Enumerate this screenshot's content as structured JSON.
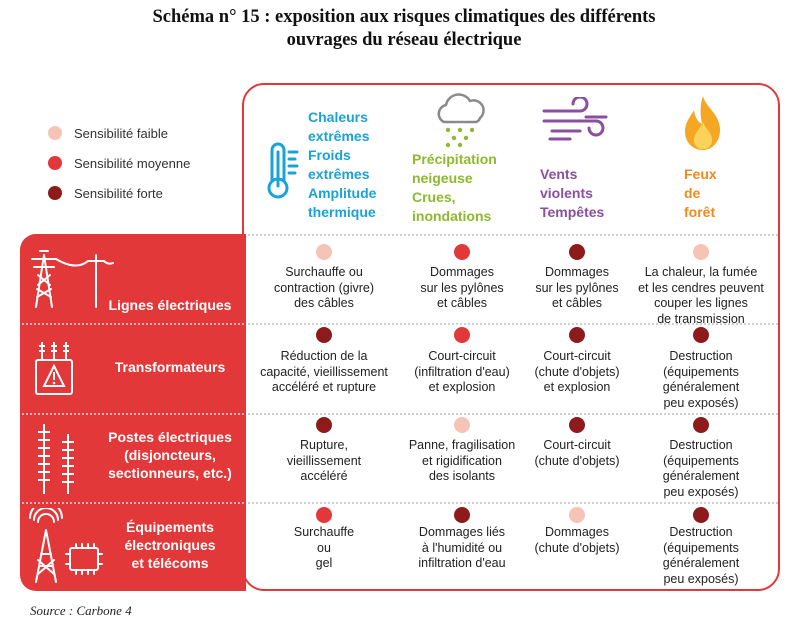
{
  "title": {
    "line1": "Schéma n° 15 : exposition aux risques climatiques des différents",
    "line2": "ouvrages du réseau électrique"
  },
  "legend": [
    {
      "label": "Sensibilité faible",
      "color": "#f6c4b6"
    },
    {
      "label": "Sensibilité moyenne",
      "color": "#e2383a"
    },
    {
      "label": "Sensibilité forte",
      "color": "#8e1b1b"
    }
  ],
  "columns": [
    {
      "lines": [
        "Chaleurs",
        "extrêmes",
        "Froids",
        "extrêmes",
        "Amplitude",
        "thermique"
      ],
      "color": "#1aa3d6",
      "icon": "thermometer-icon"
    },
    {
      "lines": [
        "Précipitation",
        "neigeuse",
        "Crues,",
        "inondations"
      ],
      "color": "#8dba2c",
      "icon": "rain-cloud-icon"
    },
    {
      "lines": [
        "Vents",
        "violents",
        "Tempêtes"
      ],
      "color": "#8a4fa0",
      "icon": "wind-icon"
    },
    {
      "lines": [
        "Feux",
        "de",
        "forêt"
      ],
      "color": "#f08a1c",
      "icon": "flame-icon"
    }
  ],
  "rows": [
    {
      "label": [
        "Lignes électriques"
      ],
      "icon": "power-line-icon",
      "cells": [
        {
          "level": "faible",
          "text": [
            "Surchauffe ou",
            "contraction (givre)",
            "des câbles"
          ]
        },
        {
          "level": "moyenne",
          "text": [
            "Dommages",
            "sur les pylônes",
            "et câbles"
          ]
        },
        {
          "level": "forte",
          "text": [
            "Dommages",
            "sur les pylônes",
            "et câbles"
          ]
        },
        {
          "level": "faible",
          "text": [
            "La chaleur, la fumée",
            "et les cendres peuvent",
            "couper les lignes",
            "de transmission"
          ]
        }
      ]
    },
    {
      "label": [
        "Transformateurs"
      ],
      "icon": "transformer-icon",
      "cells": [
        {
          "level": "forte",
          "text": [
            "Réduction de la",
            "capacité, vieillissement",
            "accéléré et rupture"
          ]
        },
        {
          "level": "moyenne",
          "text": [
            "Court-circuit",
            "(infiltration d'eau)",
            "et explosion"
          ]
        },
        {
          "level": "forte",
          "text": [
            "Court-circuit",
            "(chute d'objets)",
            "et explosion"
          ]
        },
        {
          "level": "forte",
          "text": [
            "Destruction",
            "(équipements",
            "généralement",
            "peu exposés)"
          ]
        }
      ]
    },
    {
      "label": [
        "Postes électriques",
        "(disjoncteurs,",
        "sectionneurs, etc.)"
      ],
      "icon": "insulator-icon",
      "cells": [
        {
          "level": "forte",
          "text": [
            "Rupture,",
            "vieillissement",
            "accéléré"
          ]
        },
        {
          "level": "faible",
          "text": [
            "Panne, fragilisation",
            "et rigidification",
            "des isolants"
          ]
        },
        {
          "level": "forte",
          "text": [
            "Court-circuit",
            "(chute d'objets)"
          ]
        },
        {
          "level": "forte",
          "text": [
            "Destruction",
            "(équipements",
            "généralement",
            "peu exposés)"
          ]
        }
      ]
    },
    {
      "label": [
        "Équipements",
        "électroniques",
        "et télécoms"
      ],
      "icon": "antenna-chip-icon",
      "cells": [
        {
          "level": "moyenne",
          "text": [
            "Surchauffe",
            "ou",
            "gel"
          ]
        },
        {
          "level": "forte",
          "text": [
            "Dommages liés",
            "à l'humidité ou",
            "infiltration d'eau"
          ]
        },
        {
          "level": "faible",
          "text": [
            "Dommages",
            "(chute d'objets)"
          ]
        },
        {
          "level": "forte",
          "text": [
            "Destruction",
            "(équipements",
            "généralement",
            "peu exposés)"
          ]
        }
      ]
    }
  ],
  "source": "Source : Carbone 4"
}
